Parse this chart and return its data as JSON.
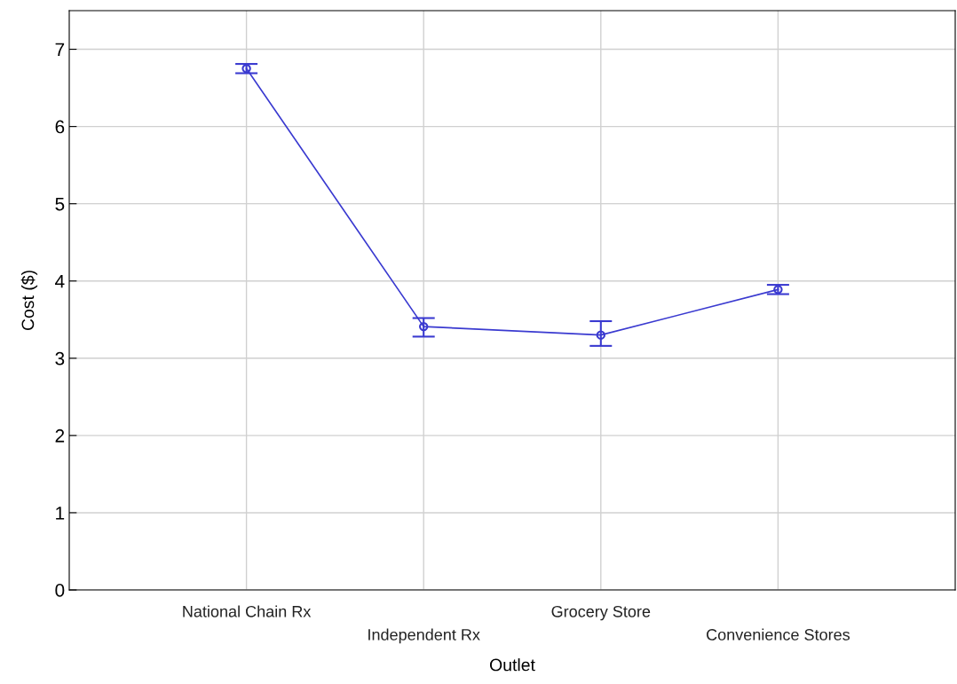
{
  "chart_data": {
    "type": "line",
    "xlabel": "Outlet",
    "ylabel": "Cost ($)",
    "categories": [
      "National Chain Rx",
      "Independent Rx",
      "Grocery Store",
      "Convenience Stores"
    ],
    "values": [
      6.75,
      3.41,
      3.3,
      3.89
    ],
    "errors": [
      0.06,
      [
        3.28,
        3.52
      ],
      [
        3.16,
        3.48
      ],
      0.06
    ],
    "color": "#3a3ad0",
    "marker": "circle",
    "line_style": "solid",
    "ylim": [
      0,
      7.5
    ],
    "yticks": [
      0,
      1,
      2,
      3,
      4,
      5,
      6,
      7
    ],
    "grid": true
  }
}
